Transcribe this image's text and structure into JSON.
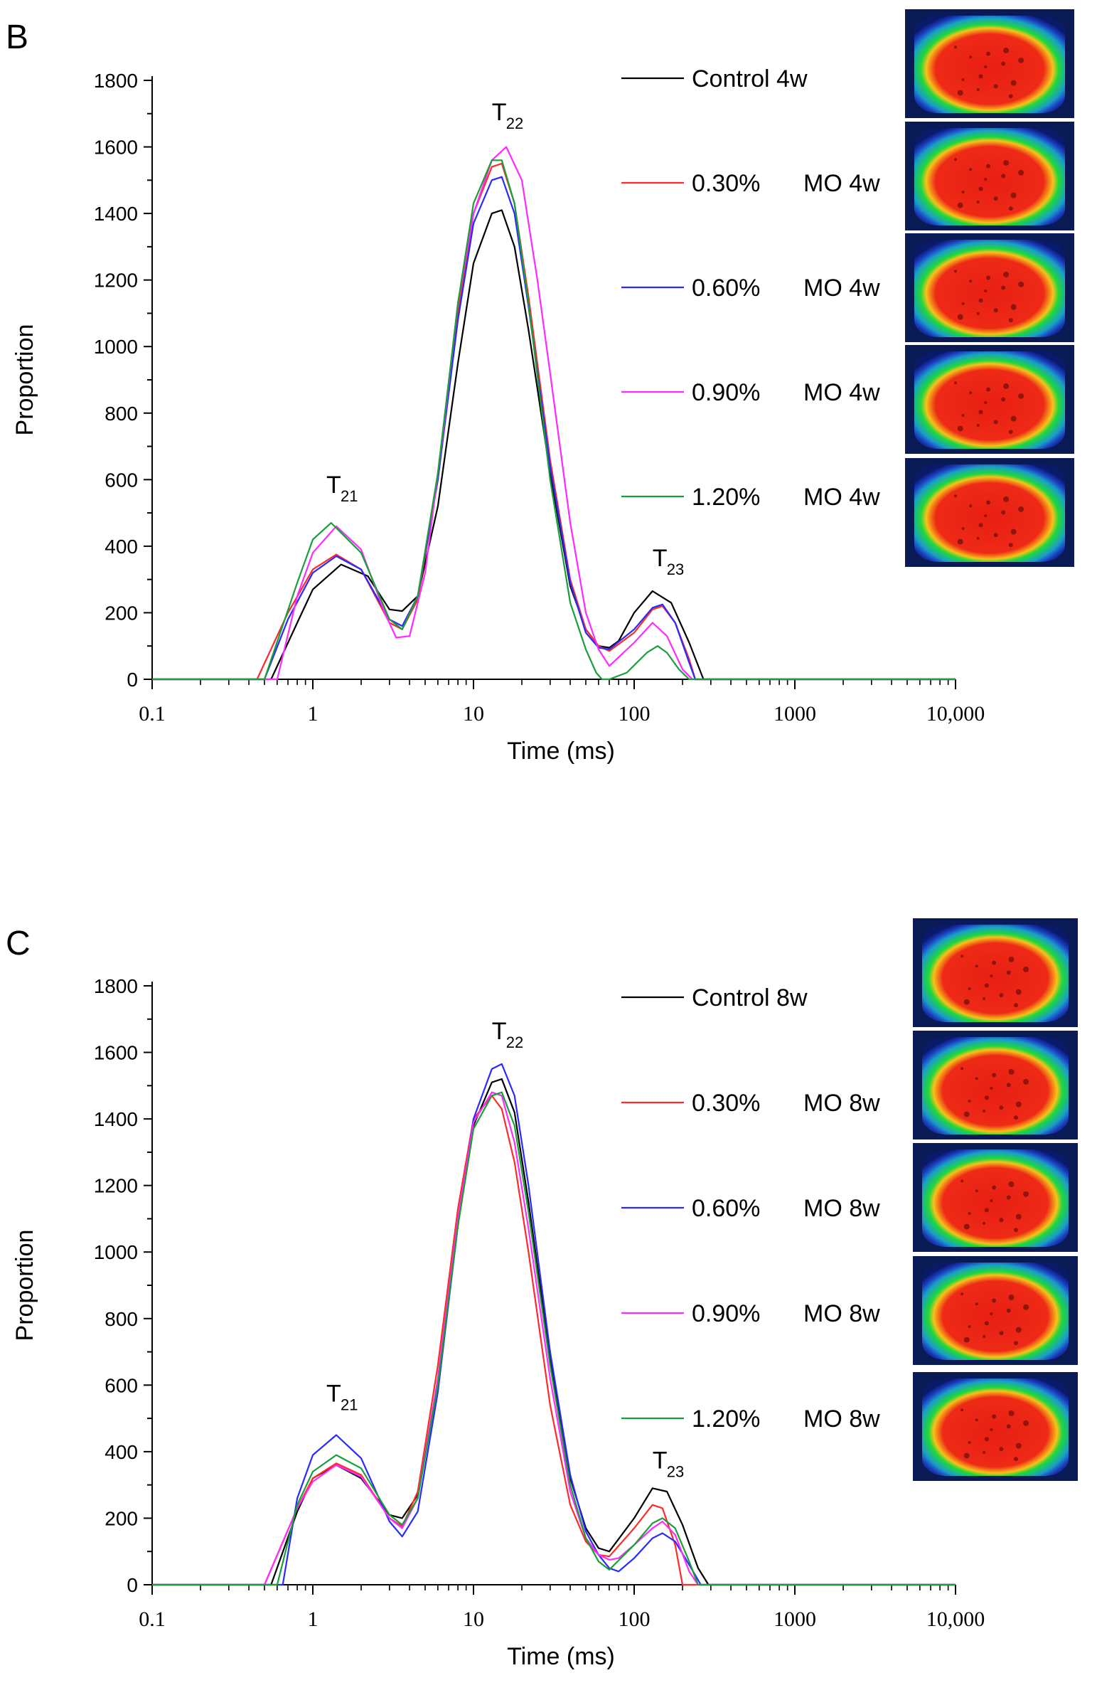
{
  "chart_data": [
    {
      "panel_label": "B",
      "type": "line",
      "xscale": "log",
      "xlabel": "Time (ms)",
      "ylabel": "Proportion",
      "xlim": [
        0.1,
        10000
      ],
      "ylim": [
        0,
        1800
      ],
      "xticks": [
        0.1,
        1,
        10,
        100,
        1000,
        10000
      ],
      "xtick_labels": [
        "0.1",
        "1",
        "10",
        "100",
        "1000",
        "10,000"
      ],
      "yticks": [
        0,
        200,
        400,
        600,
        800,
        1000,
        1200,
        1400,
        1600,
        1800
      ],
      "ytick_labels": [
        "0",
        "200",
        "400",
        "600",
        "800",
        "1000",
        "1200",
        "1400",
        "1600",
        "1800"
      ],
      "annotations": [
        {
          "main": "T",
          "sub": "21",
          "x": 1.4,
          "y": 560
        },
        {
          "main": "T",
          "sub": "22",
          "x": 15,
          "y": 1680
        },
        {
          "main": "T",
          "sub": "23",
          "x": 150,
          "y": 340
        }
      ],
      "series": [
        {
          "name": "Control 4w",
          "legend_left": "Control 4w",
          "legend_right": "",
          "color": "#000000",
          "x": [
            0.1,
            0.55,
            0.8,
            1.0,
            1.5,
            2.2,
            3.0,
            3.6,
            4.5,
            6,
            8,
            10,
            13,
            15,
            18,
            22,
            30,
            40,
            50,
            60,
            70,
            80,
            100,
            130,
            170,
            220,
            260,
            270,
            10000
          ],
          "y": [
            0,
            0,
            170,
            270,
            345,
            310,
            210,
            205,
            250,
            520,
            950,
            1250,
            1400,
            1410,
            1300,
            1050,
            620,
            280,
            150,
            100,
            95,
            115,
            200,
            265,
            230,
            110,
            20,
            0,
            0
          ]
        },
        {
          "name": "0.30% MO 4w",
          "legend_left": "0.30%",
          "legend_right": "MO 4w",
          "color": "#ff2a2a",
          "x": [
            0.1,
            0.45,
            0.7,
            1.0,
            1.4,
            2.0,
            3.0,
            3.6,
            4.5,
            6,
            8,
            10,
            13,
            15,
            18,
            22,
            30,
            40,
            50,
            60,
            70,
            100,
            130,
            150,
            180,
            220,
            240,
            10000
          ],
          "y": [
            0,
            0,
            200,
            330,
            375,
            330,
            170,
            150,
            240,
            600,
            1100,
            1400,
            1540,
            1550,
            1430,
            1150,
            660,
            300,
            150,
            100,
            85,
            140,
            210,
            220,
            170,
            60,
            0,
            0
          ]
        },
        {
          "name": "0.60% MO 4w",
          "legend_left": "0.60%",
          "legend_right": "MO 4w",
          "color": "#2a2aff",
          "x": [
            0.1,
            0.5,
            0.7,
            1.0,
            1.4,
            2.0,
            3.0,
            3.6,
            4.5,
            6,
            8,
            10,
            13,
            15,
            18,
            22,
            30,
            40,
            50,
            60,
            70,
            100,
            130,
            150,
            180,
            220,
            240,
            10000
          ],
          "y": [
            0,
            0,
            180,
            320,
            370,
            330,
            180,
            160,
            250,
            600,
            1080,
            1370,
            1500,
            1510,
            1400,
            1120,
            640,
            290,
            140,
            95,
            90,
            150,
            215,
            225,
            170,
            50,
            0,
            0
          ]
        },
        {
          "name": "0.90% MO 4w",
          "legend_left": "0.90%",
          "legend_right": "MO 4w",
          "color": "#ff2aff",
          "x": [
            0.1,
            0.6,
            0.8,
            1.0,
            1.4,
            2.0,
            2.8,
            3.3,
            4.0,
            5,
            6.5,
            8,
            10,
            13,
            16,
            20,
            25,
            30,
            40,
            50,
            60,
            70,
            100,
            130,
            160,
            200,
            230,
            10000
          ],
          "y": [
            0,
            0,
            250,
            380,
            460,
            390,
            200,
            125,
            130,
            320,
            750,
            1130,
            1400,
            1560,
            1600,
            1500,
            1200,
            920,
            470,
            200,
            90,
            40,
            110,
            170,
            130,
            30,
            0,
            0
          ]
        },
        {
          "name": "1.20% MO 4w",
          "legend_left": "1.20%",
          "legend_right": "MO 4w",
          "color": "#1a9e3a",
          "x": [
            0.1,
            0.5,
            0.8,
            1.0,
            1.3,
            2.0,
            3.0,
            3.6,
            4.5,
            6,
            8,
            10,
            13,
            15,
            18,
            22,
            30,
            40,
            50,
            58,
            63,
            70,
            90,
            120,
            140,
            160,
            190,
            220,
            10000
          ],
          "y": [
            0,
            0,
            290,
            420,
            470,
            380,
            180,
            150,
            250,
            620,
            1130,
            1430,
            1560,
            1560,
            1430,
            1130,
            600,
            230,
            90,
            20,
            0,
            0,
            20,
            80,
            100,
            80,
            30,
            0,
            0
          ]
        }
      ],
      "thumbnails": [
        "mri-control-4w",
        "mri-0.30-4w",
        "mri-0.60-4w",
        "mri-0.90-4w",
        "mri-1.20-4w"
      ]
    },
    {
      "panel_label": "C",
      "type": "line",
      "xscale": "log",
      "xlabel": "Time (ms)",
      "ylabel": "Proportion",
      "xlim": [
        0.1,
        10000
      ],
      "ylim": [
        0,
        1800
      ],
      "xticks": [
        0.1,
        1,
        10,
        100,
        1000,
        10000
      ],
      "xtick_labels": [
        "0.1",
        "1",
        "10",
        "100",
        "1000",
        "10,000"
      ],
      "yticks": [
        0,
        200,
        400,
        600,
        800,
        1000,
        1200,
        1400,
        1600,
        1800
      ],
      "ytick_labels": [
        "0",
        "200",
        "400",
        "600",
        "800",
        "1000",
        "1200",
        "1400",
        "1600",
        "1800"
      ],
      "annotations": [
        {
          "main": "T",
          "sub": "21",
          "x": 1.4,
          "y": 550
        },
        {
          "main": "T",
          "sub": "22",
          "x": 15,
          "y": 1640
        },
        {
          "main": "T",
          "sub": "23",
          "x": 150,
          "y": 350
        }
      ],
      "series": [
        {
          "name": "Control 8w",
          "legend_left": "Control 8w",
          "legend_right": "",
          "color": "#000000",
          "x": [
            0.1,
            0.55,
            0.8,
            1.0,
            1.4,
            2.0,
            3.0,
            3.6,
            4.5,
            6,
            8,
            10,
            13,
            15,
            18,
            22,
            30,
            40,
            50,
            60,
            70,
            100,
            130,
            160,
            200,
            250,
            290,
            10000
          ],
          "y": [
            0,
            0,
            220,
            320,
            360,
            320,
            210,
            200,
            270,
            600,
            1080,
            1380,
            1510,
            1520,
            1420,
            1150,
            680,
            320,
            170,
            110,
            100,
            200,
            290,
            280,
            180,
            50,
            0,
            0
          ]
        },
        {
          "name": "0.30% MO 8w",
          "legend_left": "0.30%",
          "legend_right": "MO 8w",
          "color": "#ff2a2a",
          "x": [
            0.1,
            0.5,
            0.8,
            1.0,
            1.4,
            2.0,
            3.0,
            3.6,
            4.5,
            6,
            8,
            10,
            13,
            15,
            18,
            22,
            30,
            40,
            50,
            60,
            70,
            100,
            130,
            150,
            180,
            200,
            10000
          ],
          "y": [
            0,
            0,
            230,
            320,
            365,
            330,
            200,
            175,
            280,
            660,
            1130,
            1400,
            1470,
            1430,
            1270,
            1000,
            540,
            240,
            130,
            90,
            85,
            170,
            240,
            230,
            120,
            0,
            0
          ]
        },
        {
          "name": "0.60% MO 8w",
          "legend_left": "0.60%",
          "legend_right": "MO 8w",
          "color": "#2a2aff",
          "x": [
            0.1,
            0.65,
            0.8,
            1.0,
            1.4,
            2.0,
            3.0,
            3.6,
            4.5,
            6,
            8,
            10,
            13,
            15,
            18,
            22,
            30,
            40,
            50,
            60,
            70,
            80,
            100,
            130,
            150,
            180,
            220,
            260,
            10000
          ],
          "y": [
            0,
            0,
            260,
            390,
            450,
            380,
            190,
            145,
            220,
            580,
            1080,
            1400,
            1550,
            1565,
            1470,
            1200,
            700,
            330,
            160,
            90,
            50,
            40,
            80,
            140,
            155,
            130,
            60,
            0,
            0
          ]
        },
        {
          "name": "0.90% MO 8w",
          "legend_left": "0.90%",
          "legend_right": "MO 8w",
          "color": "#ff2aff",
          "x": [
            0.1,
            0.5,
            0.8,
            1.0,
            1.4,
            2.0,
            3.0,
            3.6,
            4.5,
            6,
            8,
            10,
            13,
            15,
            18,
            22,
            30,
            40,
            50,
            60,
            70,
            80,
            100,
            130,
            150,
            180,
            220,
            250,
            10000
          ],
          "y": [
            0,
            0,
            230,
            310,
            360,
            325,
            200,
            170,
            260,
            620,
            1100,
            1390,
            1480,
            1470,
            1330,
            1070,
            620,
            280,
            140,
            90,
            75,
            80,
            120,
            170,
            190,
            150,
            40,
            0,
            0
          ]
        },
        {
          "name": "1.20% MO 8w",
          "legend_left": "1.20%",
          "legend_right": "MO 8w",
          "color": "#1a9e3a",
          "x": [
            0.1,
            0.6,
            0.8,
            1.0,
            1.4,
            2.0,
            3.0,
            3.6,
            4.5,
            6,
            8,
            10,
            13,
            15,
            18,
            22,
            30,
            40,
            50,
            60,
            70,
            100,
            130,
            150,
            180,
            220,
            250,
            10000
          ],
          "y": [
            0,
            0,
            240,
            340,
            390,
            350,
            210,
            180,
            260,
            600,
            1080,
            1370,
            1470,
            1480,
            1380,
            1120,
            660,
            300,
            140,
            70,
            45,
            120,
            185,
            200,
            170,
            70,
            0,
            0
          ]
        }
      ],
      "thumbnails": [
        "mri-control-8w",
        "mri-0.30-8w",
        "mri-0.60-8w",
        "mri-0.90-8w",
        "mri-1.20-8w"
      ]
    }
  ]
}
